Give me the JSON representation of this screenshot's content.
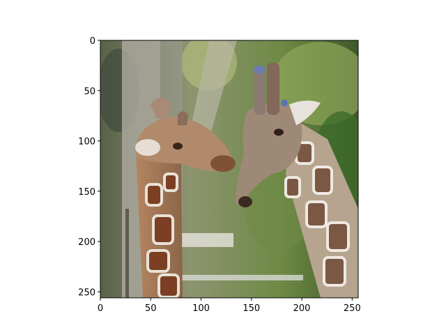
{
  "figure": {
    "type": "image-plot",
    "image_description_name": "two-giraffes-photo",
    "x_range": [
      0,
      256
    ],
    "y_range": [
      256,
      0
    ],
    "x_ticks": [
      0,
      50,
      100,
      150,
      200,
      250
    ],
    "y_ticks": [
      0,
      50,
      100,
      150,
      200,
      250
    ],
    "axis_color": "#000000",
    "background": "#ffffff"
  }
}
